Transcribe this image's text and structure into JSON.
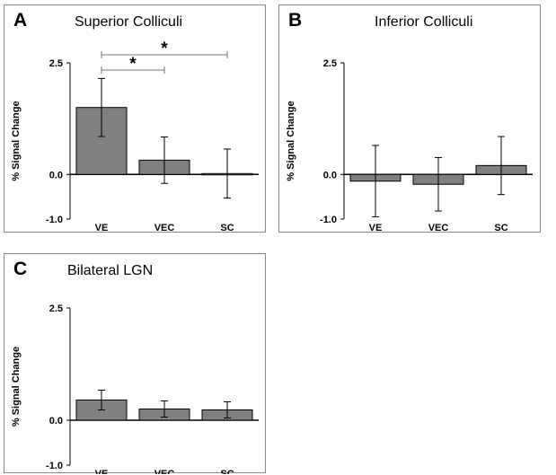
{
  "chart_data": [
    {
      "type": "bar",
      "panel": "A",
      "title": "Superior Colliculi",
      "ylabel": "% Signal Change",
      "categories": [
        "VE",
        "VEC",
        "SC"
      ],
      "values": [
        1.5,
        0.32,
        0.02
      ],
      "errors": [
        0.65,
        0.52,
        0.55
      ],
      "ylim": [
        -1.0,
        2.5
      ],
      "yticks": [
        "2.5",
        "0.0",
        "-1.0"
      ],
      "yticks_values": [
        2.5,
        0.0,
        -1.0
      ],
      "bar_color": "#808080",
      "significance": [
        {
          "from": 0,
          "to": 1,
          "label": "*"
        },
        {
          "from": 0,
          "to": 2,
          "label": "*"
        }
      ]
    },
    {
      "type": "bar",
      "panel": "B",
      "title": "Inferior Colliculi",
      "ylabel": "% Signal Change",
      "categories": [
        "VE",
        "VEC",
        "SC"
      ],
      "values": [
        -0.15,
        -0.22,
        0.2
      ],
      "errors": [
        0.8,
        0.6,
        0.65
      ],
      "ylim": [
        -1.0,
        2.5
      ],
      "yticks": [
        "2.5",
        "0.0",
        "-1.0"
      ],
      "yticks_values": [
        2.5,
        0.0,
        -1.0
      ],
      "bar_color": "#808080",
      "significance": []
    },
    {
      "type": "bar",
      "panel": "C",
      "title": "Bilateral LGN",
      "ylabel": "% Signal Change",
      "categories": [
        "VE",
        "VEC",
        "SC"
      ],
      "values": [
        0.45,
        0.25,
        0.23
      ],
      "errors": [
        0.22,
        0.18,
        0.18
      ],
      "ylim": [
        -1.0,
        2.5
      ],
      "yticks": [
        "2.5",
        "0.0",
        "-1.0"
      ],
      "yticks_values": [
        2.5,
        0.0,
        -1.0
      ],
      "bar_color": "#808080",
      "significance": []
    }
  ]
}
